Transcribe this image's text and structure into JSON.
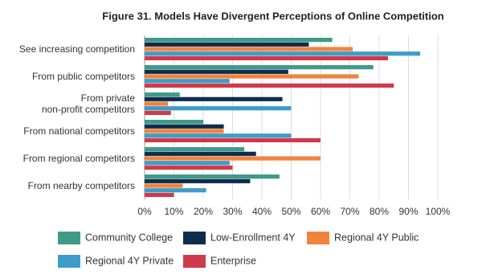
{
  "chart_data": {
    "type": "hbar",
    "title": "Figure 31. Models Have Divergent Perceptions of Online Competition",
    "categories": [
      "See increasing competition",
      "From public competitors",
      "From private\nnon-profit competitors",
      "From national competitors",
      "From regional competitors",
      "From nearby competitors"
    ],
    "series": [
      {
        "name": "Community College",
        "color": "#3f9b87",
        "values": [
          64,
          78,
          12,
          20,
          34,
          46
        ]
      },
      {
        "name": "Low-Enrollment 4Y",
        "color": "#0d2c4e",
        "values": [
          56,
          49,
          47,
          27,
          38,
          36
        ]
      },
      {
        "name": "Regional 4Y Public",
        "color": "#f0843c",
        "values": [
          71,
          73,
          8,
          27,
          60,
          13
        ]
      },
      {
        "name": "Regional 4Y Private",
        "color": "#3e9cc9",
        "values": [
          94,
          29,
          50,
          50,
          29,
          21
        ]
      },
      {
        "name": "Enterprise",
        "color": "#cf3a4a",
        "values": [
          83,
          85,
          9,
          60,
          30,
          10
        ]
      }
    ],
    "xlim": [
      0,
      100
    ],
    "xticks": [
      {
        "value": 0,
        "label": "0%"
      },
      {
        "value": 10,
        "label": "10%"
      },
      {
        "value": 20,
        "label": "20%"
      },
      {
        "value": 30,
        "label": "30%"
      },
      {
        "value": 40,
        "label": "40%"
      },
      {
        "value": 50,
        "label": "50%"
      },
      {
        "value": 60,
        "label": "60%"
      },
      {
        "value": 70,
        "label": "70%"
      },
      {
        "value": 80,
        "label": "80%"
      },
      {
        "value": 90,
        "label": "90%"
      },
      {
        "value": 100,
        "label": "100%"
      }
    ],
    "grid": true
  }
}
